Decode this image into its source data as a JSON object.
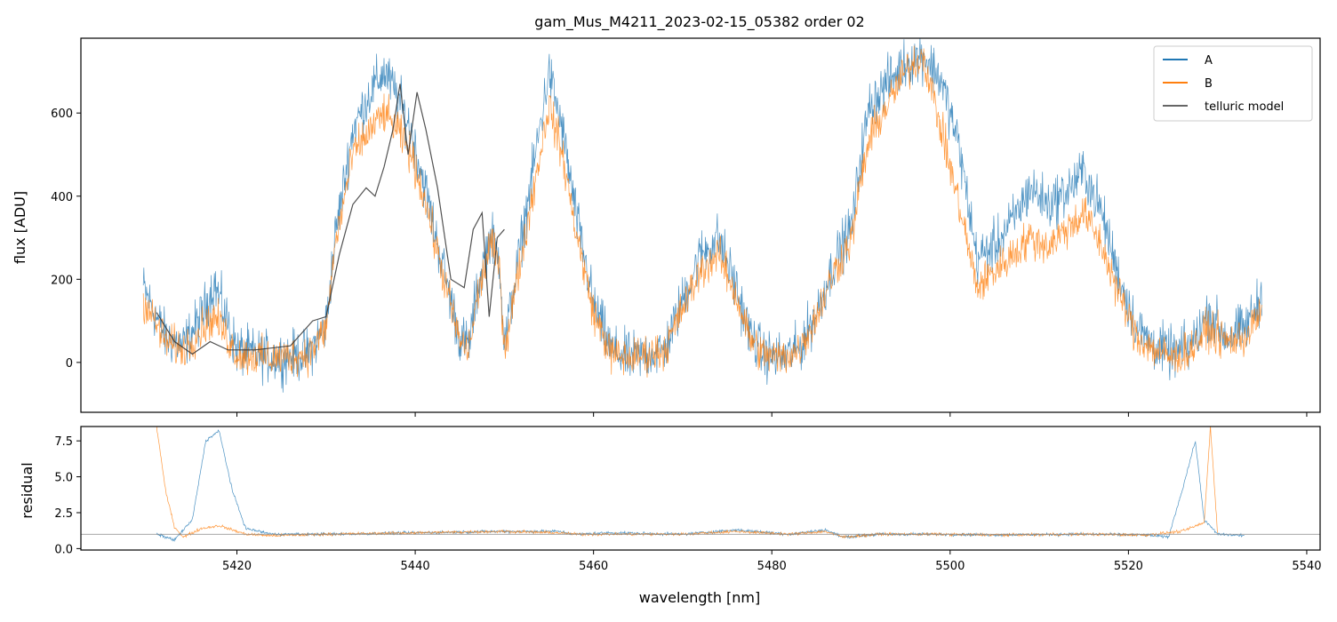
{
  "chart_data": [
    {
      "type": "line",
      "title": "gam_Mus_M4211_2023-02-15_05382  order 02",
      "xlabel": "",
      "ylabel": "flux [ADU]",
      "xlim": [
        5402.5,
        5541.5
      ],
      "ylim": [
        -120,
        780
      ],
      "yticks": [
        0,
        200,
        400,
        600
      ],
      "ytick_labels": [
        "0",
        "200",
        "400",
        "600"
      ],
      "grid": false,
      "legend": {
        "placement": "top-right",
        "entries": [
          {
            "label": "A",
            "color": "#1f77b4"
          },
          {
            "label": "B",
            "color": "#ff7f0e"
          },
          {
            "label": "telluric model",
            "color": "#333333"
          }
        ]
      },
      "series": [
        {
          "name": "A",
          "color": "#1f77b4",
          "noise": 90,
          "x": [
            5409.5,
            5412,
            5414,
            5416,
            5417.5,
            5420,
            5424,
            5428,
            5430,
            5431,
            5433,
            5435,
            5436.5,
            5438,
            5439.5,
            5441,
            5443,
            5445,
            5446,
            5447,
            5448.5,
            5449.5,
            5450,
            5455,
            5456.5,
            5458,
            5460,
            5462,
            5464,
            5466,
            5468,
            5470,
            5472,
            5474,
            5476,
            5477.5,
            5479,
            5481,
            5483,
            5485,
            5487,
            5489,
            5490,
            5491,
            5492.5,
            5495,
            5497,
            5499,
            5501,
            5503,
            5505,
            5507,
            5509,
            5511,
            5513,
            5515,
            5517,
            5519,
            5521,
            5523,
            5525,
            5527,
            5529,
            5531,
            5533,
            5535
          ],
          "y": [
            180,
            60,
            40,
            110,
            190,
            30,
            10,
            20,
            90,
            300,
            560,
            650,
            700,
            640,
            560,
            430,
            240,
            60,
            40,
            180,
            310,
            240,
            40,
            700,
            560,
            360,
            140,
            30,
            10,
            20,
            30,
            150,
            260,
            300,
            180,
            70,
            20,
            10,
            30,
            120,
            240,
            330,
            500,
            620,
            660,
            720,
            740,
            680,
            520,
            250,
            280,
            340,
            420,
            380,
            410,
            460,
            360,
            200,
            80,
            40,
            20,
            40,
            120,
            60,
            80,
            160
          ]
        },
        {
          "name": "B",
          "color": "#ff7f0e",
          "noise": 70,
          "x": [
            5409.5,
            5412,
            5414,
            5416,
            5417.5,
            5420,
            5424,
            5428,
            5430,
            5431,
            5433,
            5435,
            5436.5,
            5438,
            5439.5,
            5441,
            5443,
            5445,
            5446,
            5447,
            5448.5,
            5449.5,
            5450,
            5455,
            5456.5,
            5458,
            5460,
            5462,
            5464,
            5466,
            5468,
            5470,
            5472,
            5474,
            5476,
            5477.5,
            5479,
            5481,
            5483,
            5485,
            5487,
            5489,
            5490,
            5491,
            5492.5,
            5495,
            5497,
            5499,
            5501,
            5503,
            5505,
            5507,
            5509,
            5511,
            5513,
            5515,
            5517,
            5519,
            5521,
            5523,
            5525,
            5527,
            5529,
            5531,
            5533,
            5535
          ],
          "y": [
            150,
            50,
            30,
            80,
            110,
            20,
            10,
            20,
            80,
            280,
            500,
            560,
            600,
            560,
            500,
            400,
            220,
            50,
            30,
            160,
            290,
            220,
            30,
            620,
            500,
            320,
            120,
            20,
            10,
            20,
            30,
            130,
            220,
            260,
            160,
            60,
            20,
            10,
            30,
            110,
            220,
            300,
            440,
            540,
            600,
            700,
            740,
            560,
            380,
            180,
            220,
            260,
            300,
            280,
            320,
            360,
            280,
            160,
            60,
            30,
            10,
            30,
            80,
            50,
            60,
            120
          ]
        },
        {
          "name": "telluric model",
          "color": "#333333",
          "x": [
            5411,
            5413,
            5415,
            5417,
            5419,
            5422,
            5426,
            5428.5,
            5430,
            5431.5,
            5433,
            5434.5,
            5435.5,
            5436.5,
            5437.5,
            5438.3,
            5439.2,
            5440.2,
            5441.2,
            5442.5,
            5444,
            5445.5,
            5446.5,
            5447.5,
            5448.3,
            5449.2,
            5450
          ],
          "y": [
            120,
            50,
            20,
            50,
            30,
            30,
            40,
            100,
            110,
            260,
            380,
            420,
            400,
            470,
            560,
            670,
            500,
            650,
            560,
            420,
            200,
            180,
            320,
            360,
            110,
            300,
            320
          ]
        }
      ]
    },
    {
      "type": "line",
      "title": "",
      "xlabel": "wavelength [nm]",
      "ylabel": "residual",
      "xlim": [
        5402.5,
        5541.5
      ],
      "ylim": [
        -0.1,
        8.5
      ],
      "xticks": [
        5420,
        5440,
        5460,
        5480,
        5500,
        5520,
        5540
      ],
      "xtick_labels": [
        "5420",
        "5440",
        "5460",
        "5480",
        "5500",
        "5520",
        "5540"
      ],
      "yticks": [
        0.0,
        2.5,
        5.0,
        7.5
      ],
      "ytick_labels": [
        "0.0",
        "2.5",
        "5.0",
        "7.5"
      ],
      "hline": 1.0,
      "grid": false,
      "series": [
        {
          "name": "A",
          "color": "#1f77b4",
          "noise": 0.15,
          "x": [
            5411,
            5413,
            5415,
            5416.5,
            5418,
            5419.5,
            5421,
            5424,
            5430,
            5440,
            5449.8,
            5456,
            5458,
            5462,
            5470,
            5476,
            5482,
            5486,
            5488,
            5492,
            5498,
            5505,
            5515,
            5522,
            5524.5,
            5526,
            5527.5,
            5528.5,
            5530,
            5533
          ],
          "y": [
            1.0,
            0.6,
            2.0,
            7.5,
            8.2,
            4.0,
            1.4,
            1.0,
            1.0,
            1.1,
            1.2,
            1.2,
            1.0,
            1.1,
            1.0,
            1.3,
            1.0,
            1.3,
            0.8,
            1.0,
            1.0,
            0.95,
            1.0,
            0.95,
            0.8,
            4.0,
            7.5,
            2.0,
            1.0,
            0.9
          ]
        },
        {
          "name": "B",
          "color": "#ff7f0e",
          "noise": 0.15,
          "x": [
            5411,
            5412,
            5413,
            5414,
            5416,
            5418,
            5421,
            5424,
            5430,
            5440,
            5449.8,
            5456,
            5458,
            5462,
            5470,
            5476,
            5482,
            5486,
            5488,
            5492,
            5498,
            5505,
            5515,
            5522,
            5526,
            5528.5,
            5529.2,
            5530
          ],
          "y": [
            8.5,
            4.0,
            1.5,
            0.8,
            1.4,
            1.6,
            1.0,
            0.9,
            1.0,
            1.1,
            1.2,
            1.1,
            1.0,
            1.0,
            1.0,
            1.2,
            1.0,
            1.2,
            0.8,
            1.0,
            1.0,
            0.95,
            1.0,
            0.95,
            1.2,
            1.8,
            8.5,
            1.0
          ]
        }
      ]
    }
  ]
}
